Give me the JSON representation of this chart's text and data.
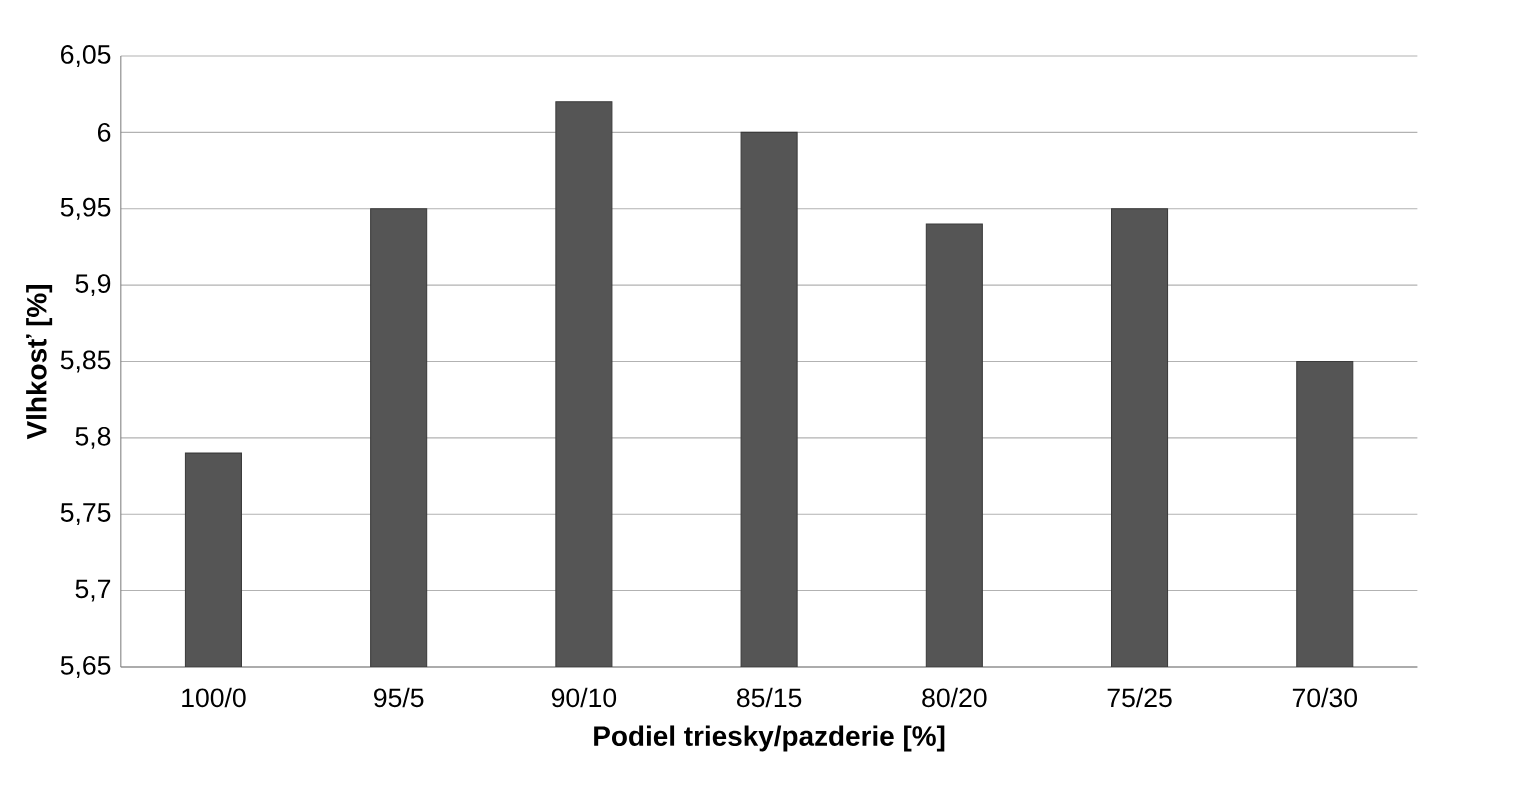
{
  "chart_data": {
    "type": "bar",
    "xlabel": "Podiel triesky/pazderie [%]",
    "ylabel": "Vlhkosť [%]",
    "categories": [
      "100/0",
      "95/5",
      "90/10",
      "85/15",
      "80/20",
      "75/25",
      "70/30"
    ],
    "values": [
      5.79,
      5.95,
      6.02,
      6.0,
      5.94,
      5.95,
      5.85
    ],
    "color": "#555555",
    "ylim": [
      5.65,
      6.05
    ],
    "yticks": [
      {
        "value": 5.65,
        "label": "5,65"
      },
      {
        "value": 5.7,
        "label": "5,7"
      },
      {
        "value": 5.75,
        "label": "5,75"
      },
      {
        "value": 5.8,
        "label": "5,8"
      },
      {
        "value": 5.85,
        "label": "5,85"
      },
      {
        "value": 5.9,
        "label": "5,9"
      },
      {
        "value": 5.95,
        "label": "5,95"
      },
      {
        "value": 6.0,
        "label": "6"
      },
      {
        "value": 6.05,
        "label": "6,05"
      }
    ],
    "grid": "y"
  }
}
